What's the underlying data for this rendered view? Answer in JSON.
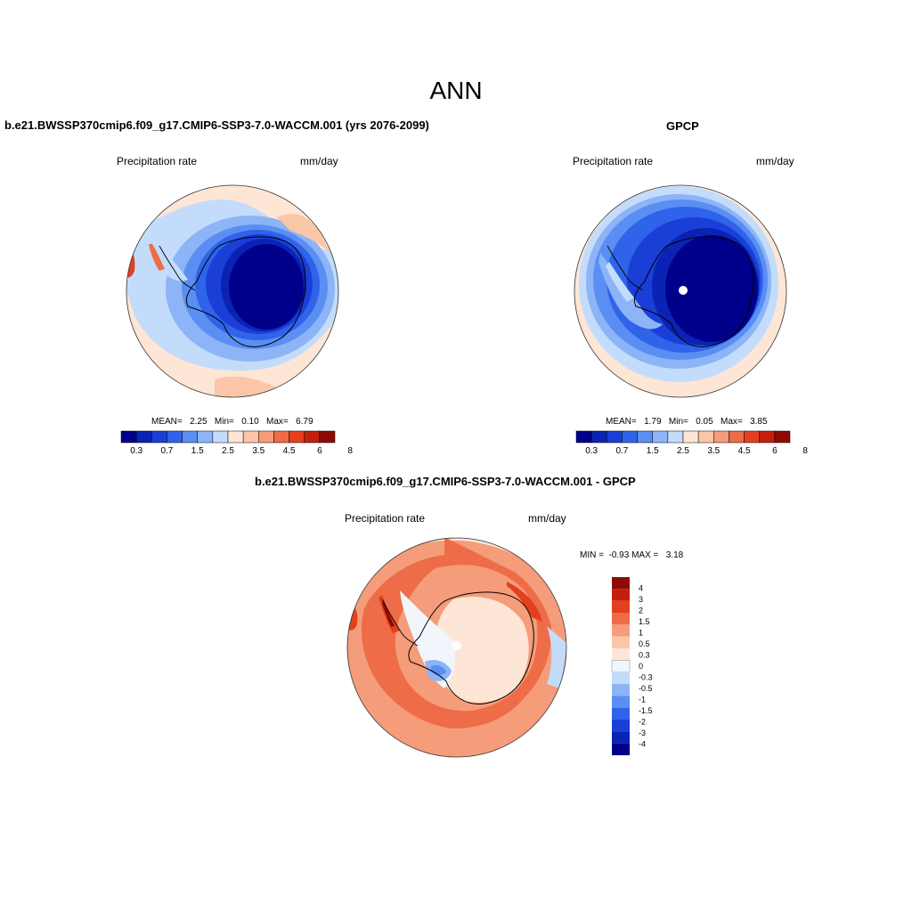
{
  "page": {
    "title": "ANN"
  },
  "panels": [
    {
      "id": "model",
      "title": "b.e21.BWSSP370cmip6.f09_g17.CMIP6-SSP3-7.0-WACCM.001 (yrs 2076-2099)",
      "variable": "Precipitation rate",
      "units": "mm/day",
      "stats": {
        "mean_label": "MEAN=",
        "mean": "2.25",
        "min_label": "Min=",
        "min": "0.10",
        "max_label": "Max=",
        "max": "6.79"
      },
      "colorbar_ticks": [
        "0.3",
        "0.7",
        "1.5",
        "2.5",
        "3.5",
        "4.5",
        "6",
        "8"
      ]
    },
    {
      "id": "obs",
      "title": "GPCP",
      "variable": "Precipitation rate",
      "units": "mm/day",
      "stats": {
        "mean_label": "MEAN=",
        "mean": "1.79",
        "min_label": "Min=",
        "min": "0.05",
        "max_label": "Max=",
        "max": "3.85"
      },
      "colorbar_ticks": [
        "0.3",
        "0.7",
        "1.5",
        "2.5",
        "3.5",
        "4.5",
        "6",
        "8"
      ]
    },
    {
      "id": "diff",
      "title": "b.e21.BWSSP370cmip6.f09_g17.CMIP6-SSP3-7.0-WACCM.001 - GPCP",
      "variable": "Precipitation rate",
      "units": "mm/day",
      "stats": {
        "min_label": "MIN =",
        "min": "-0.93",
        "max_label": "MAX =",
        "max": "3.18"
      },
      "colorbar_ticks": [
        "4",
        "3",
        "2",
        "1.5",
        "1",
        "0.5",
        "0.3",
        "0",
        "-0.3",
        "-0.5",
        "-1",
        "-1.5",
        "-2",
        "-3",
        "-4"
      ]
    }
  ],
  "colors": {
    "abs_scale": [
      "#00008b",
      "#0a23b4",
      "#1a3fd6",
      "#2f63ea",
      "#5a8ef2",
      "#8cb4f6",
      "#c3dcfb",
      "#fde6d6",
      "#fbc6a8",
      "#f59c7a",
      "#ee6c47",
      "#e3401d",
      "#c41f0d",
      "#8f0a05"
    ],
    "diff_scale": [
      "#8f0a05",
      "#c41f0d",
      "#e3401d",
      "#ee6c47",
      "#f59c7a",
      "#fbc6a8",
      "#fde6d6",
      "#f1f6fd",
      "#c3dcfb",
      "#8cb4f6",
      "#5a8ef2",
      "#2f63ea",
      "#1a3fd6",
      "#0a23b4",
      "#00008b"
    ]
  }
}
